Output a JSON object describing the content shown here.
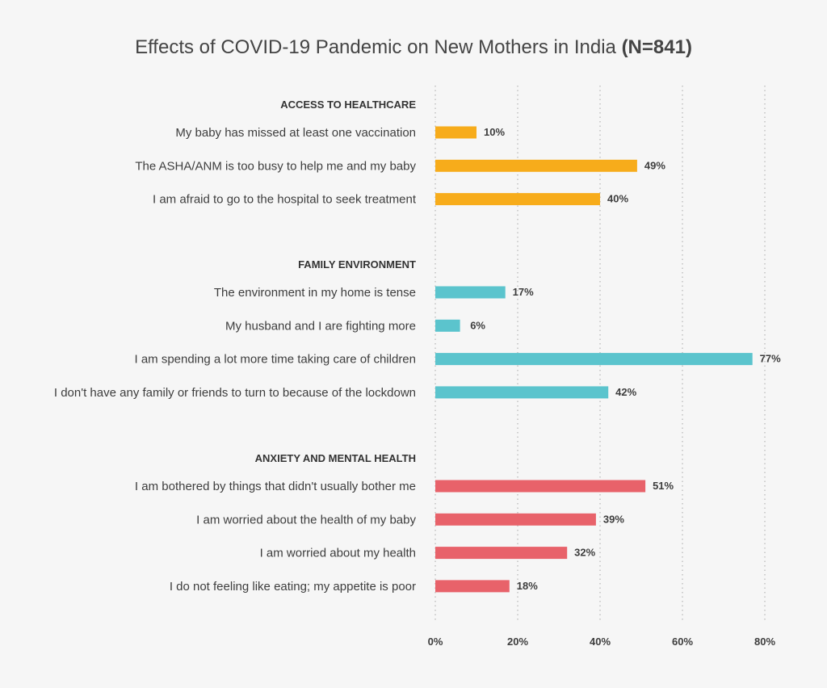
{
  "chart_data": {
    "type": "bar",
    "orientation": "horizontal",
    "title": "Effects of COVID-19 Pandemic on New Mothers in India",
    "title_suffix": "(N=841)",
    "xlim": [
      0,
      80
    ],
    "x_ticks": [
      "0%",
      "20%",
      "40%",
      "60%",
      "80%"
    ],
    "x_tick_values": [
      0,
      20,
      40,
      60,
      80
    ],
    "grid": true,
    "value_suffix": "%",
    "groups": [
      {
        "name": "ACCESS TO HEALTHCARE",
        "color": "#f7ac1b",
        "items": [
          {
            "label": "My baby has missed at least one vaccination",
            "value": 10
          },
          {
            "label": "The ASHA/ANM is too busy to help me and my baby",
            "value": 49
          },
          {
            "label": "I am afraid to go to the hospital to seek treatment",
            "value": 40
          }
        ]
      },
      {
        "name": "FAMILY ENVIRONMENT",
        "color": "#5bc4cd",
        "items": [
          {
            "label": "The environment in my home is tense",
            "value": 17
          },
          {
            "label": "My husband and I are fighting more",
            "value": 6
          },
          {
            "label": "I am spending a lot more time taking care of children",
            "value": 77
          },
          {
            "label": "I don't have any family or friends to turn to because of the lockdown",
            "value": 42
          }
        ]
      },
      {
        "name": "ANXIETY AND MENTAL HEALTH",
        "color": "#e8626a",
        "items": [
          {
            "label": "I am bothered by things that didn't usually bother me",
            "value": 51
          },
          {
            "label": "I am worried about the health of my baby",
            "value": 39
          },
          {
            "label": "I am worried about my health",
            "value": 32
          },
          {
            "label": "I do not feeling like eating; my appetite is poor",
            "value": 18
          }
        ]
      }
    ]
  }
}
